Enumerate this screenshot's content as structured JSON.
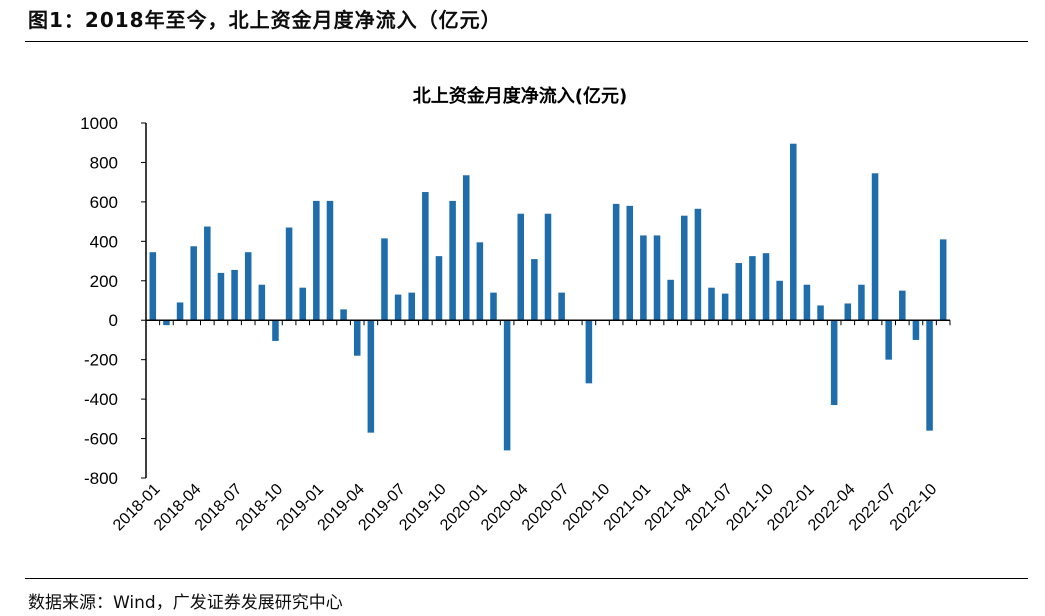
{
  "header": {
    "figure_title": "图1：2018年至今，北上资金月度净流入（亿元）"
  },
  "footer": {
    "source": "数据来源：Wind，广发证券发展研究中心"
  },
  "colors": {
    "bar": "#1f6eab",
    "axis": "#000000"
  },
  "chart_data": {
    "type": "bar",
    "title": "北上资金月度净流入(亿元)",
    "xlabel": "",
    "ylabel": "",
    "ylim": [
      -800,
      1000
    ],
    "yticks": [
      1000,
      800,
      600,
      400,
      200,
      0,
      -200,
      -400,
      -600,
      -800
    ],
    "xtick_labels": [
      "2018-01",
      "2018-04",
      "2018-07",
      "2018-10",
      "2019-01",
      "2019-04",
      "2019-07",
      "2019-10",
      "2020-01",
      "2020-04",
      "2020-07",
      "2020-10",
      "2021-01",
      "2021-04",
      "2021-07",
      "2021-10",
      "2022-01",
      "2022-04",
      "2022-07",
      "2022-10"
    ],
    "categories": [
      "2018-01",
      "2018-02",
      "2018-03",
      "2018-04",
      "2018-05",
      "2018-06",
      "2018-07",
      "2018-08",
      "2018-09",
      "2018-10",
      "2018-11",
      "2018-12",
      "2019-01",
      "2019-02",
      "2019-03",
      "2019-04",
      "2019-05",
      "2019-06",
      "2019-07",
      "2019-08",
      "2019-09",
      "2019-10",
      "2019-11",
      "2019-12",
      "2020-01",
      "2020-02",
      "2020-03",
      "2020-04",
      "2020-05",
      "2020-06",
      "2020-07",
      "2020-08",
      "2020-09",
      "2020-10",
      "2020-11",
      "2020-12",
      "2021-01",
      "2021-02",
      "2021-03",
      "2021-04",
      "2021-05",
      "2021-06",
      "2021-07",
      "2021-08",
      "2021-09",
      "2021-10",
      "2021-11",
      "2021-12",
      "2022-01",
      "2022-02",
      "2022-03",
      "2022-04",
      "2022-05",
      "2022-06",
      "2022-07",
      "2022-08",
      "2022-09",
      "2022-10",
      "2022-11"
    ],
    "values": [
      345,
      -25,
      90,
      375,
      475,
      240,
      255,
      345,
      180,
      -105,
      470,
      165,
      605,
      605,
      55,
      -180,
      -570,
      415,
      130,
      140,
      650,
      325,
      605,
      735,
      395,
      140,
      -660,
      540,
      310,
      540,
      140,
      0,
      -320,
      0,
      590,
      580,
      430,
      430,
      205,
      530,
      565,
      165,
      135,
      290,
      325,
      340,
      200,
      895,
      180,
      75,
      -430,
      85,
      180,
      745,
      -200,
      150,
      -100,
      -560,
      410
    ]
  }
}
